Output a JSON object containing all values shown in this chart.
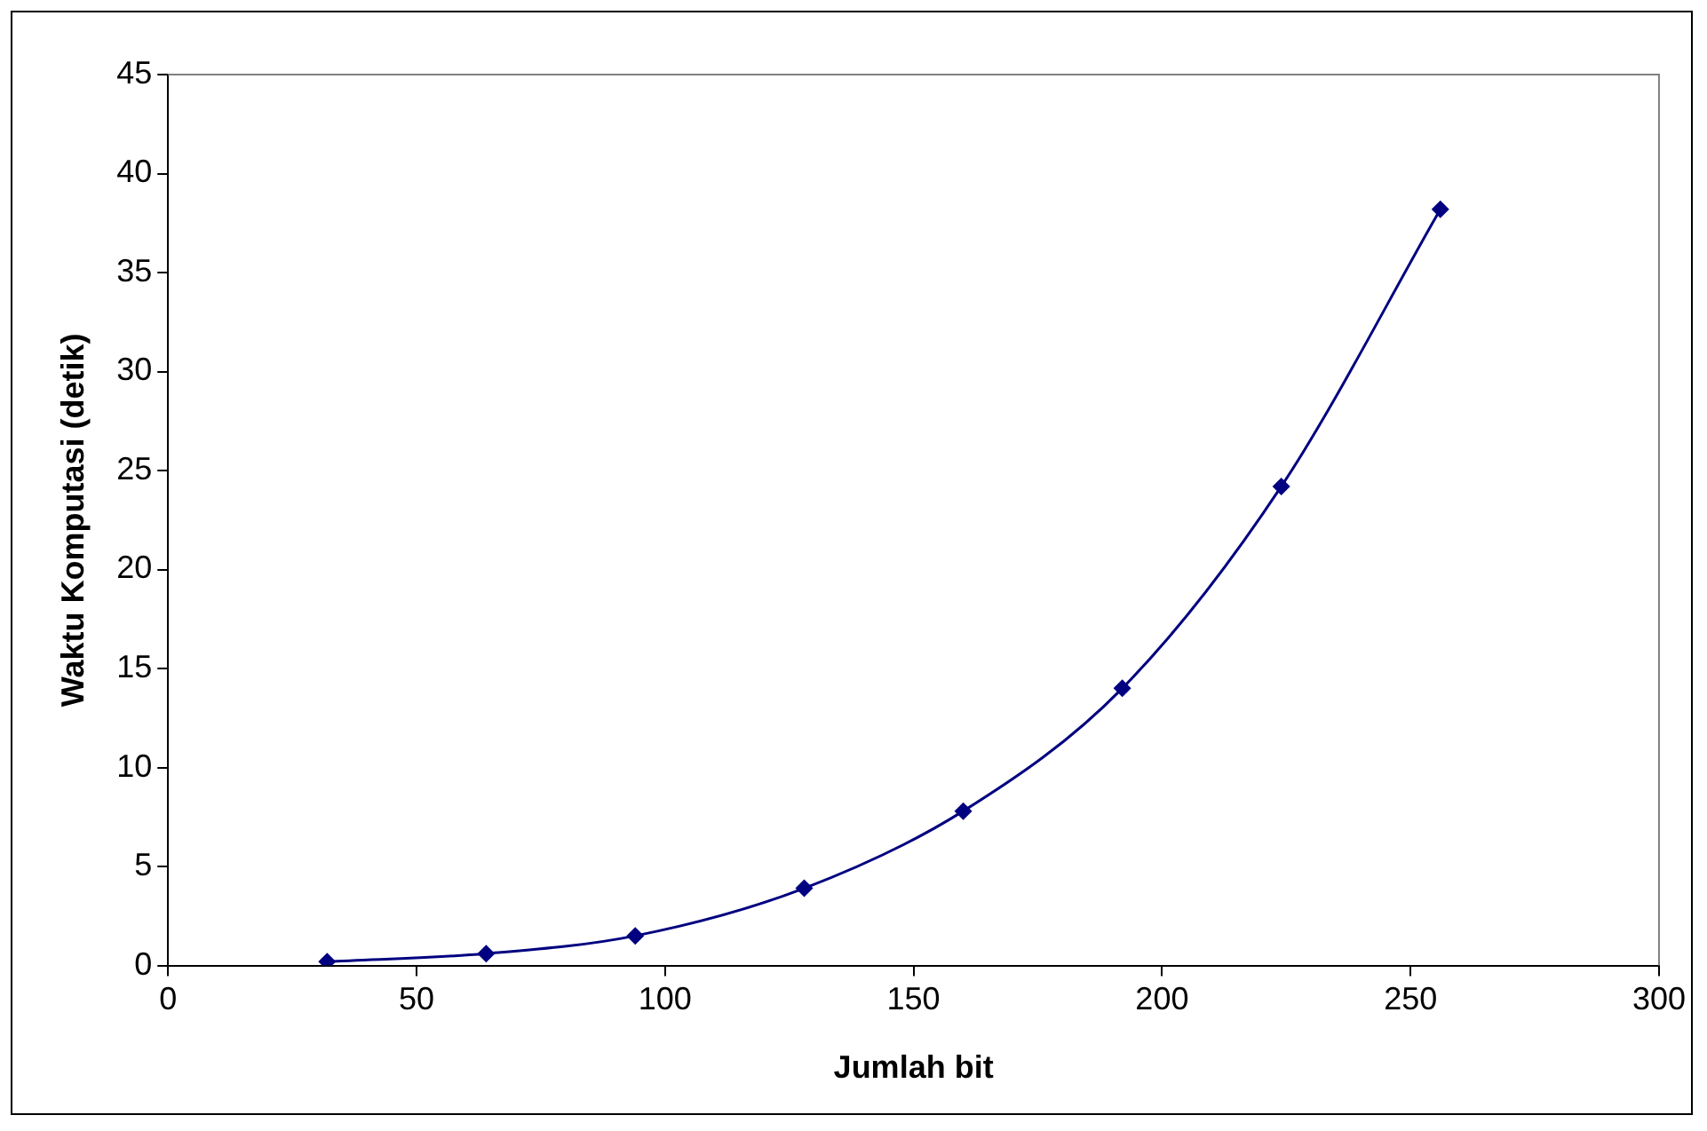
{
  "chart_data": {
    "type": "line",
    "xlabel": "Jumlah bit",
    "ylabel": "Waktu Komputasi (detik)",
    "x": [
      32,
      64,
      94,
      128,
      160,
      192,
      224,
      256
    ],
    "series": [
      {
        "color": "#000080",
        "values": [
          0.2,
          0.6,
          1.5,
          3.9,
          7.8,
          14.0,
          24.2,
          38.2
        ]
      }
    ],
    "xlim": [
      0,
      300
    ],
    "xticks": [
      0,
      50,
      100,
      150,
      200,
      250,
      300
    ],
    "ylim": [
      0,
      45
    ],
    "yticks": [
      0,
      5,
      10,
      15,
      20,
      25,
      30,
      35,
      40,
      45
    ],
    "grid": false,
    "legend": false,
    "marker": "diamond",
    "line_style": "solid"
  }
}
